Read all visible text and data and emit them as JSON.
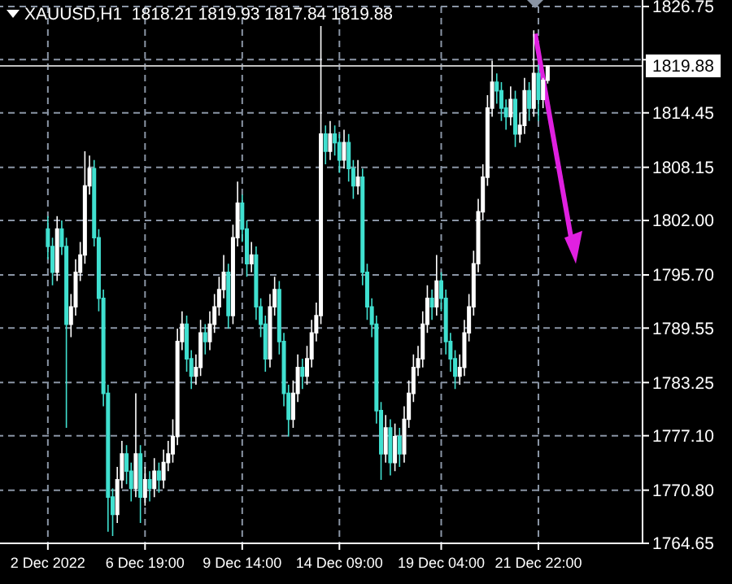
{
  "chart_data": {
    "type": "candlestick",
    "title": "XAUUSD,H1  1818.21 1819.93 1817.84 1819.88",
    "categories": [
      "2 Dec 2022",
      null,
      null,
      null,
      null,
      null,
      null,
      null,
      null,
      null,
      null,
      null,
      null,
      null,
      null,
      null,
      null,
      null,
      null,
      null,
      null,
      "6 Dec 19:00",
      null,
      null,
      null,
      null,
      null,
      null,
      null,
      null,
      null,
      null,
      null,
      null,
      null,
      null,
      null,
      null,
      null,
      null,
      null,
      null,
      "9 Dec 14:00",
      null,
      null,
      null,
      null,
      null,
      null,
      null,
      null,
      null,
      null,
      null,
      null,
      null,
      null,
      null,
      null,
      null,
      null,
      null,
      null,
      "14 Dec 09:00",
      null,
      null,
      null,
      null,
      null,
      null,
      null,
      null,
      null,
      null,
      null,
      null,
      null,
      null,
      null,
      null,
      null,
      null,
      null,
      null,
      null,
      "19 Dec 04:00",
      null,
      null,
      null,
      null,
      null,
      null,
      null,
      null,
      null,
      null,
      null,
      null,
      null,
      null,
      null,
      null,
      null,
      null,
      null,
      null,
      "21 Dec 22:00",
      null,
      null,
      null,
      null,
      null,
      null,
      null,
      null,
      null,
      null,
      null,
      null,
      null,
      null,
      null,
      null,
      null,
      null,
      null,
      null,
      null,
      null
    ],
    "ohlc": [
      [
        1801,
        1802.5,
        1797.5,
        1799
      ],
      [
        1799,
        1800,
        1794.5,
        1796
      ],
      [
        1796,
        1802.5,
        1795,
        1801
      ],
      [
        1801,
        1802,
        1798,
        1799
      ],
      [
        1799,
        1800,
        1778,
        1790
      ],
      [
        1790,
        1793.5,
        1788.5,
        1792
      ],
      [
        1792,
        1797.5,
        1791,
        1796
      ],
      [
        1796,
        1799.5,
        1795,
        1798
      ],
      [
        1798,
        1810,
        1797,
        1806
      ],
      [
        1806,
        1809.5,
        1805,
        1808
      ],
      [
        1808,
        1809,
        1799,
        1800
      ],
      [
        1800,
        1801,
        1791.5,
        1793
      ],
      [
        1793,
        1794,
        1780.5,
        1782
      ],
      [
        1782,
        1783,
        1766,
        1770
      ],
      [
        1770,
        1771,
        1765.5,
        1768
      ],
      [
        1768,
        1773.5,
        1767,
        1772
      ],
      [
        1772,
        1776.5,
        1771,
        1775
      ],
      [
        1775,
        1776,
        1771.5,
        1773
      ],
      [
        1773,
        1774,
        1769.5,
        1771
      ],
      [
        1771,
        1782,
        1770,
        1775
      ],
      [
        1775,
        1776,
        1767,
        1770
      ],
      [
        1770,
        1773.5,
        1769,
        1772
      ],
      [
        1772,
        1773,
        1769.5,
        1771
      ],
      [
        1771,
        1774.5,
        1770,
        1773
      ],
      [
        1773,
        1774,
        1770.5,
        1772
      ],
      [
        1772,
        1775.5,
        1771,
        1774
      ],
      [
        1774,
        1776.5,
        1773,
        1775
      ],
      [
        1775,
        1779,
        1774,
        1777
      ],
      [
        1777,
        1789.5,
        1776,
        1788
      ],
      [
        1788,
        1791.5,
        1787,
        1790
      ],
      [
        1790,
        1791,
        1784.5,
        1786
      ],
      [
        1786,
        1787,
        1782.5,
        1784
      ],
      [
        1784,
        1786.5,
        1783,
        1785
      ],
      [
        1785,
        1790.5,
        1784,
        1789
      ],
      [
        1789,
        1790,
        1786.5,
        1788
      ],
      [
        1788,
        1791.5,
        1787,
        1790
      ],
      [
        1790,
        1793.5,
        1789,
        1792
      ],
      [
        1792,
        1795.5,
        1791,
        1794
      ],
      [
        1794,
        1798,
        1793,
        1796
      ],
      [
        1796,
        1797,
        1789.5,
        1791
      ],
      [
        1791,
        1801.5,
        1790,
        1800
      ],
      [
        1800,
        1806.5,
        1799,
        1804
      ],
      [
        1804,
        1805,
        1799.5,
        1801
      ],
      [
        1801,
        1802,
        1795.5,
        1797
      ],
      [
        1797,
        1799.5,
        1796,
        1798
      ],
      [
        1798,
        1799,
        1790.5,
        1792
      ],
      [
        1792,
        1793,
        1788.5,
        1790
      ],
      [
        1790,
        1791,
        1784.5,
        1786
      ],
      [
        1786,
        1793.5,
        1785,
        1792
      ],
      [
        1792,
        1795.5,
        1791,
        1794
      ],
      [
        1794,
        1795,
        1786.5,
        1788
      ],
      [
        1788,
        1789,
        1780.5,
        1782
      ],
      [
        1782,
        1783,
        1777,
        1779
      ],
      [
        1779,
        1783.5,
        1778,
        1782
      ],
      [
        1782,
        1786.5,
        1781,
        1785
      ],
      [
        1785,
        1786,
        1782.5,
        1784
      ],
      [
        1784,
        1787.5,
        1783,
        1786
      ],
      [
        1786,
        1790.5,
        1785,
        1789
      ],
      [
        1789,
        1792.5,
        1788,
        1791
      ],
      [
        1791,
        1824.5,
        1790,
        1812
      ],
      [
        1812,
        1813,
        1808.5,
        1810
      ],
      [
        1810,
        1813.5,
        1809,
        1812
      ],
      [
        1812,
        1813,
        1809.5,
        1811
      ],
      [
        1811,
        1812,
        1807.5,
        1809
      ],
      [
        1809,
        1812.5,
        1808,
        1811
      ],
      [
        1811,
        1812,
        1806.5,
        1808
      ],
      [
        1808,
        1809,
        1804.5,
        1806
      ],
      [
        1806,
        1809,
        1805,
        1807
      ],
      [
        1807,
        1808,
        1794.5,
        1796
      ],
      [
        1796,
        1797,
        1790.5,
        1792
      ],
      [
        1792,
        1793,
        1788.5,
        1790
      ],
      [
        1790,
        1791,
        1778.5,
        1780
      ],
      [
        1780,
        1781,
        1772,
        1775
      ],
      [
        1775,
        1779.5,
        1774,
        1778
      ],
      [
        1778,
        1779,
        1772.5,
        1774
      ],
      [
        1774,
        1778.5,
        1773,
        1777
      ],
      [
        1777,
        1778,
        1773.5,
        1775
      ],
      [
        1775,
        1780.5,
        1774,
        1779
      ],
      [
        1779,
        1783.5,
        1778,
        1782
      ],
      [
        1782,
        1786.5,
        1781,
        1785
      ],
      [
        1785,
        1787.5,
        1784,
        1786
      ],
      [
        1786,
        1791.5,
        1785,
        1790
      ],
      [
        1790,
        1794.5,
        1789,
        1793
      ],
      [
        1793,
        1794,
        1790.5,
        1792
      ],
      [
        1792,
        1798,
        1791,
        1795
      ],
      [
        1795,
        1796,
        1791.5,
        1793
      ],
      [
        1793,
        1794,
        1786.5,
        1788
      ],
      [
        1788,
        1789,
        1784.5,
        1786
      ],
      [
        1786,
        1787,
        1782.5,
        1784
      ],
      [
        1784,
        1786.5,
        1783,
        1785
      ],
      [
        1785,
        1790.5,
        1784,
        1789
      ],
      [
        1789,
        1793.5,
        1788,
        1792
      ],
      [
        1792,
        1798.5,
        1791,
        1797
      ],
      [
        1797,
        1804.5,
        1796,
        1803
      ],
      [
        1803,
        1808.5,
        1802,
        1807
      ],
      [
        1807,
        1816.5,
        1806,
        1815
      ],
      [
        1815,
        1820.5,
        1814,
        1818
      ],
      [
        1818,
        1819,
        1815.5,
        1817
      ],
      [
        1817,
        1818,
        1813.5,
        1815
      ],
      [
        1815,
        1816,
        1812.5,
        1814
      ],
      [
        1814,
        1817.5,
        1813,
        1816
      ],
      [
        1816,
        1817,
        1810.5,
        1812
      ],
      [
        1812,
        1814.5,
        1811,
        1813
      ],
      [
        1813,
        1818.5,
        1812,
        1817
      ],
      [
        1817,
        1818,
        1813.5,
        1815
      ],
      [
        1815,
        1824,
        1814,
        1819
      ],
      [
        1819,
        1820,
        1813.5,
        1816
      ],
      [
        1816,
        1818.5,
        1815,
        1818.21
      ],
      [
        1818.21,
        1819.93,
        1817.84,
        1819.88
      ],
      null,
      null,
      null,
      null,
      null,
      null,
      null,
      null,
      null,
      null,
      null,
      null,
      null,
      null,
      null,
      null,
      null,
      null,
      null,
      null
    ],
    "colors": [
      "#40e0d0",
      "#40e0d0",
      "#ffffff",
      "#40e0d0",
      "#40e0d0",
      "#ffffff",
      "#ffffff",
      "#ffffff",
      "#ffffff",
      "#ffffff",
      "#40e0d0",
      "#40e0d0",
      "#40e0d0",
      "#40e0d0",
      "#40e0d0",
      "#ffffff",
      "#ffffff",
      "#40e0d0",
      "#40e0d0",
      "#ffffff",
      "#40e0d0",
      "#ffffff",
      "#40e0d0",
      "#ffffff",
      "#40e0d0",
      "#ffffff",
      "#ffffff",
      "#ffffff",
      "#ffffff",
      "#ffffff",
      "#40e0d0",
      "#40e0d0",
      "#ffffff",
      "#ffffff",
      "#40e0d0",
      "#ffffff",
      "#ffffff",
      "#ffffff",
      "#ffffff",
      "#40e0d0",
      "#ffffff",
      "#ffffff",
      "#40e0d0",
      "#40e0d0",
      "#ffffff",
      "#40e0d0",
      "#40e0d0",
      "#40e0d0",
      "#ffffff",
      "#ffffff",
      "#40e0d0",
      "#40e0d0",
      "#40e0d0",
      "#ffffff",
      "#ffffff",
      "#40e0d0",
      "#ffffff",
      "#ffffff",
      "#ffffff",
      "#ffffff",
      "#40e0d0",
      "#ffffff",
      "#40e0d0",
      "#40e0d0",
      "#ffffff",
      "#40e0d0",
      "#40e0d0",
      "#ffffff",
      "#40e0d0",
      "#40e0d0",
      "#40e0d0",
      "#40e0d0",
      "#40e0d0",
      "#ffffff",
      "#40e0d0",
      "#ffffff",
      "#40e0d0",
      "#ffffff",
      "#ffffff",
      "#ffffff",
      "#ffffff",
      "#ffffff",
      "#ffffff",
      "#40e0d0",
      "#ffffff",
      "#40e0d0",
      "#40e0d0",
      "#40e0d0",
      "#40e0d0",
      "#ffffff",
      "#ffffff",
      "#ffffff",
      "#ffffff",
      "#ffffff",
      "#ffffff",
      "#ffffff",
      "#ffffff",
      "#40e0d0",
      "#40e0d0",
      "#40e0d0",
      "#ffffff",
      "#40e0d0",
      "#ffffff",
      "#ffffff",
      "#40e0d0",
      "#ffffff",
      "#40e0d0",
      "#ffffff",
      "#ffffff",
      null,
      null,
      null,
      null,
      null,
      null,
      null,
      null,
      null,
      null,
      null,
      null,
      null,
      null,
      null,
      null,
      null,
      null,
      null,
      null
    ],
    "ylim": [
      1764.65,
      1826.75
    ],
    "yticks": [
      1764.65,
      {
        "value": 1770.8,
        "label": "1770.80"
      },
      {
        "value": 1777.1,
        "label": "1777.10"
      },
      1783.25,
      1789.55,
      {
        "value": 1795.7,
        "label": "1795.70"
      },
      {
        "value": 1802,
        "label": "1802.00"
      },
      1808.15,
      1814.45,
      {
        "value": 1820.6,
        "label": null
      },
      1826.75
    ],
    "ref_lines": [
      {
        "axis": "y",
        "value": 1819.88,
        "label": "1819.88",
        "color": "#c0c0c0"
      }
    ],
    "grid": true
  }
}
